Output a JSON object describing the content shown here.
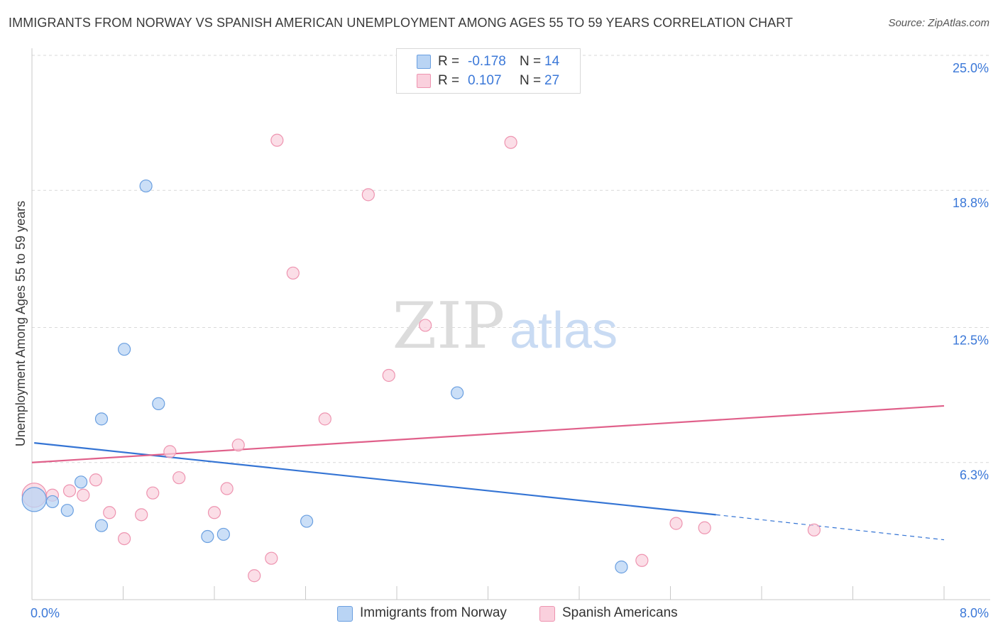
{
  "title": "IMMIGRANTS FROM NORWAY VS SPANISH AMERICAN UNEMPLOYMENT AMONG AGES 55 TO 59 YEARS CORRELATION CHART",
  "source": "Source: ZipAtlas.com",
  "watermark": {
    "zip": "ZIP",
    "atlas": "atlas"
  },
  "legend_top": {
    "rows": [
      {
        "r_label": "R =",
        "r_value": "-0.178",
        "n_label": "N =",
        "n_value": "14",
        "color": "#a9c8f0",
        "border": "#6a9fe0"
      },
      {
        "r_label": "R =",
        "r_value": "0.107",
        "n_label": "N =",
        "n_value": "27",
        "color": "#f8c3d3",
        "border": "#ee94b0"
      }
    ]
  },
  "colors": {
    "norway_fill": "#b9d4f4",
    "norway_stroke": "#6a9fe0",
    "norway_line": "#3474d4",
    "spanish_fill": "#fad0dd",
    "spanish_stroke": "#ee94b0",
    "spanish_line": "#e0608a",
    "grid": "#d9d9d9",
    "axis_label": "#3b78d8"
  },
  "chart_data": {
    "type": "scatter",
    "title": "IMMIGRANTS FROM NORWAY VS SPANISH AMERICAN UNEMPLOYMENT AMONG AGES 55 TO 59 YEARS CORRELATION CHART",
    "xlabel": "",
    "ylabel": "Unemployment Among Ages 55 to 59 years",
    "xlim": [
      0,
      8.0
    ],
    "ylim": [
      0,
      25.0
    ],
    "x_tick_labels": [
      {
        "value": 0,
        "label": "0.0%"
      },
      {
        "value": 8.0,
        "label": "8.0%"
      }
    ],
    "y_tick_labels": [
      {
        "value": 6.3,
        "label": "6.3%"
      },
      {
        "value": 12.5,
        "label": "12.5%"
      },
      {
        "value": 18.8,
        "label": "18.8%"
      },
      {
        "value": 25.0,
        "label": "25.0%"
      }
    ],
    "legend_position": "bottom-center",
    "series": [
      {
        "name": "Immigrants from Norway",
        "r": -0.178,
        "n": 14,
        "points": [
          {
            "x": 0.02,
            "y": 4.6,
            "size": "large"
          },
          {
            "x": 0.18,
            "y": 4.5
          },
          {
            "x": 0.31,
            "y": 4.1
          },
          {
            "x": 0.43,
            "y": 5.4
          },
          {
            "x": 0.61,
            "y": 3.4
          },
          {
            "x": 0.61,
            "y": 8.3
          },
          {
            "x": 0.81,
            "y": 11.5
          },
          {
            "x": 1.0,
            "y": 19.0
          },
          {
            "x": 1.11,
            "y": 9.0
          },
          {
            "x": 1.54,
            "y": 2.9
          },
          {
            "x": 1.68,
            "y": 3.0
          },
          {
            "x": 2.41,
            "y": 3.6
          },
          {
            "x": 3.73,
            "y": 9.5
          },
          {
            "x": 5.17,
            "y": 1.5
          }
        ],
        "trend": {
          "x0": 0.02,
          "y0": 7.2,
          "x1": 6.0,
          "y1": 3.9,
          "dash_to_x": 8.0,
          "dash_to_y": 2.75
        }
      },
      {
        "name": "Spanish Americans",
        "r": 0.107,
        "n": 27,
        "points": [
          {
            "x": 0.02,
            "y": 4.8,
            "size": "large"
          },
          {
            "x": 0.18,
            "y": 4.8
          },
          {
            "x": 0.33,
            "y": 5.0
          },
          {
            "x": 0.45,
            "y": 4.8
          },
          {
            "x": 0.56,
            "y": 5.5
          },
          {
            "x": 0.68,
            "y": 4.0
          },
          {
            "x": 0.81,
            "y": 2.8
          },
          {
            "x": 0.96,
            "y": 3.9
          },
          {
            "x": 1.06,
            "y": 4.9
          },
          {
            "x": 1.21,
            "y": 6.8
          },
          {
            "x": 1.29,
            "y": 5.6
          },
          {
            "x": 1.6,
            "y": 4.0
          },
          {
            "x": 1.71,
            "y": 5.1
          },
          {
            "x": 1.81,
            "y": 7.1
          },
          {
            "x": 1.95,
            "y": 1.1
          },
          {
            "x": 2.1,
            "y": 1.9
          },
          {
            "x": 2.15,
            "y": 21.1
          },
          {
            "x": 2.29,
            "y": 15.0
          },
          {
            "x": 2.57,
            "y": 8.3
          },
          {
            "x": 2.95,
            "y": 18.6
          },
          {
            "x": 3.13,
            "y": 10.3
          },
          {
            "x": 3.45,
            "y": 12.6
          },
          {
            "x": 4.2,
            "y": 21.0
          },
          {
            "x": 5.35,
            "y": 1.8
          },
          {
            "x": 5.65,
            "y": 3.5
          },
          {
            "x": 5.9,
            "y": 3.3
          },
          {
            "x": 6.86,
            "y": 3.2
          }
        ],
        "trend": {
          "x0": 0.0,
          "y0": 6.3,
          "x1": 8.0,
          "y1": 8.9
        }
      }
    ]
  }
}
